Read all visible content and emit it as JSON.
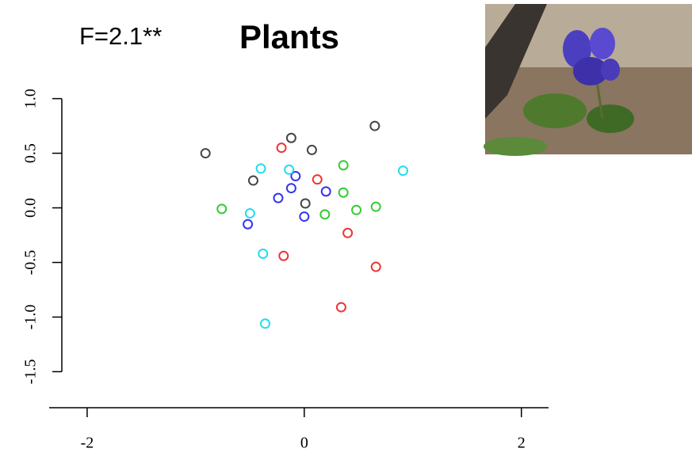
{
  "chart_data": {
    "type": "scatter",
    "subtitle": "F=2.1**",
    "title": "Plants",
    "xlim": [
      -2.35,
      2.25
    ],
    "xticks": [
      -2,
      0,
      2
    ],
    "ylim": [
      -1.83,
      1.2
    ],
    "yticks": [
      {
        "value": 1,
        "label": "1.0"
      },
      0.5,
      {
        "value": 0,
        "label": "0.0"
      },
      -0.5,
      {
        "value": -1,
        "label": "-1.0"
      },
      -1.5
    ],
    "series": [
      {
        "color": "#444444",
        "x": [
          -0.91,
          -0.47,
          -0.12,
          0.07,
          0.65,
          0.01
        ],
        "y": [
          0.5,
          0.25,
          0.64,
          0.53,
          0.75,
          0.04
        ]
      },
      {
        "color": "#ee3333",
        "x": [
          -0.21,
          0.12,
          0.4,
          -0.19,
          0.66,
          0.34
        ],
        "y": [
          0.55,
          0.26,
          -0.23,
          -0.44,
          -0.54,
          -0.91
        ]
      },
      {
        "color": "#33cc33",
        "x": [
          -0.76,
          0.36,
          0.36,
          0.19,
          0.48,
          0.66
        ],
        "y": [
          -0.01,
          0.39,
          0.14,
          -0.06,
          -0.02,
          0.01
        ]
      },
      {
        "color": "#3333ee",
        "x": [
          -0.08,
          -0.12,
          -0.24,
          0.2,
          0.0,
          -0.52
        ],
        "y": [
          0.29,
          0.18,
          0.09,
          0.15,
          -0.08,
          -0.15
        ]
      },
      {
        "color": "#22ddee",
        "x": [
          -0.4,
          -0.14,
          0.91,
          -0.5,
          -0.38,
          -0.36
        ],
        "y": [
          0.36,
          0.35,
          0.34,
          -0.05,
          -0.42,
          -1.06
        ]
      }
    ]
  }
}
